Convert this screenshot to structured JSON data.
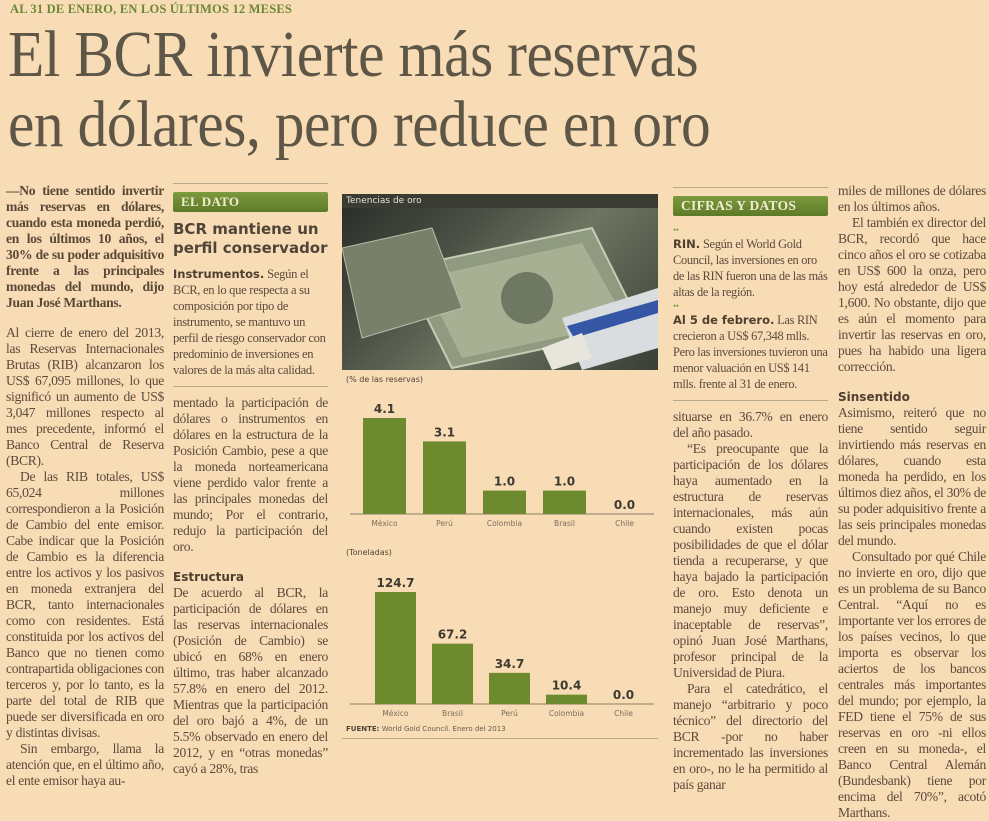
{
  "kicker": "AL 31 DE ENERO, EN LOS ÚLTIMOS 12 MESES",
  "headline": [
    "El BCR invierte más reservas",
    "en dólares, pero reduce en oro"
  ],
  "col1": {
    "lead": "—No tiene sentido invertir más reservas en dólares, cuando esta moneda perdió, en los últimos 10 años, el 30% de su poder adquisitivo frente a las principales monedas del mundo, dijo Juan José Marthans.",
    "paragraphs": [
      "Al cierre de enero del 2013, las Reservas Internacionales Brutas (RIB) alcanzaron los US$ 67,095 millones, lo que significó un aumento de US$ 3,047 millones respecto al mes precedente, informó el Banco Central de Reserva (BCR).",
      "De las RIB totales, US$ 65,024 millones correspondieron a la Posición de Cambio del ente emisor. Cabe indicar que la Posición de Cambio es la diferencia entre los activos y los pasivos en moneda extranjera del BCR, tanto internacionales como con residentes. Está constituida por los activos del Banco que no tienen como contrapartida obligaciones con terceros y, por lo tanto, es la parte del total de RIB que puede ser diversificada en oro y distintas divisas.",
      "Sin embargo, llama la atención que, en el último año, el ente emisor haya au-"
    ]
  },
  "el_dato": {
    "header": "EL DATO",
    "title": "BCR mantiene un perfil conservador",
    "lead": "Instrumentos.",
    "text": "Según el BCR, en lo que respecta a su composición por tipo de instrumento, se mantuvo un perfil de riesgo conservador con predominio de inversiones en valores de la más alta calidad."
  },
  "col2": {
    "paragraph": "mentado la participación de dólares o instrumentos en dólares en la estructura de la Posición Cambio, pese a que la moneda norteamericana viene perdido valor frente a las principales monedas del mundo; Por el contrario, redujo la participación del oro.",
    "subhead": "Estructura",
    "paragraph2": "De acuerdo al BCR, la participación de dólares en las reservas internacionales (Posición de Cambio) se ubicó en 68% en enero último, tras haber alcanzado 57.8% en enero del 2012. Mientras que la participación del oro bajó a 4%, de un 5.5% observado en enero del 2012, y en “otras monedas” cayó a 28%, tras"
  },
  "graphic": {
    "title": "Tenencias de oro",
    "source_label": "FUENTE:",
    "source": "World Gold Council. Enero del 2013"
  },
  "chart_data": [
    {
      "type": "bar",
      "title": "(% de las reservas)",
      "categories": [
        "México",
        "Perú",
        "Colombia",
        "Brasil",
        "Chile"
      ],
      "values": [
        4.1,
        3.1,
        1.0,
        1.0,
        0.0
      ],
      "labels": [
        "4.1",
        "3.1",
        "1.0",
        "1.0",
        "0.0"
      ],
      "ylim": [
        0,
        4.1
      ],
      "color": "#6e8a2f"
    },
    {
      "type": "bar",
      "title": "(Toneladas)",
      "categories": [
        "México",
        "Brasil",
        "Perú",
        "Colombia",
        "Chile"
      ],
      "values": [
        124.7,
        67.2,
        34.7,
        10.4,
        0.0
      ],
      "labels": [
        "124.7",
        "67.2",
        "34.7",
        "10.4",
        "0.0"
      ],
      "ylim": [
        0,
        124.7
      ],
      "color": "#6e8a2f"
    }
  ],
  "cifras": {
    "header": "CIFRAS Y DATOS",
    "bullet": "••",
    "items": [
      {
        "lead": "RIN.",
        "text": "Según el World Gold Council, las inversiones en oro de las RIN fueron una de las más altas de la región."
      },
      {
        "lead": "Al 5 de febrero.",
        "text": "Las RIN crecieron a US$ 67,348 mlls. Pero las inversiones tuvieron una menor valuación en US$ 141 mlls. frente al 31 de enero."
      }
    ]
  },
  "col4": {
    "paragraphs": [
      "situarse en 36.7% en enero del año pasado.",
      "“Es preocupante que la participación de los dólares haya aumentado en la estructura de reservas internacionales, más aún cuando existen pocas posibilidades de que el dólar tienda a recuperarse, y que haya bajado la participación de oro. Esto denota un manejo muy deficiente e inaceptable de reservas”, opinó Juan José Marthans, profesor principal de la Universidad de Piura.",
      "Para el catedrático, el manejo “arbitrario y poco técnico” del directorio del BCR -por no haber incrementado las inversiones en oro-, no le ha permitido al país ganar"
    ]
  },
  "col5": {
    "paragraphs": [
      "miles de millones de dólares en los últimos años.",
      "El también ex director del BCR, recordó que hace cinco años el oro se cotizaba en US$ 600 la onza, pero hoy está alrededor de US$ 1,600. No obstante, dijo que es aún el momento para invertir las reservas en oro, pues ha habido una ligera corrección."
    ],
    "subhead": "Sinsentido",
    "paragraphs2": [
      "Asimismo, reiteró que no tiene sentido seguir invirtiendo más reservas en dólares, cuando esta moneda ha perdido, en los últimos diez años, el 30% de su poder adquisitivo frente a las seis principales monedas del mundo.",
      "Consultado por qué Chile no invierte en oro, dijo que es un problema de su Banco Central. “Aquí no es importante ver los errores de los países vecinos, lo que importa es observar los aciertos de los bancos centrales más importantes del mundo; por ejemplo, la FED tiene el 75% de sus reservas en oro -ni ellos creen en su moneda-, el Banco Central Alemán (Bundesbank) tiene por encima del 70%”, acotó Marthans."
    ]
  }
}
